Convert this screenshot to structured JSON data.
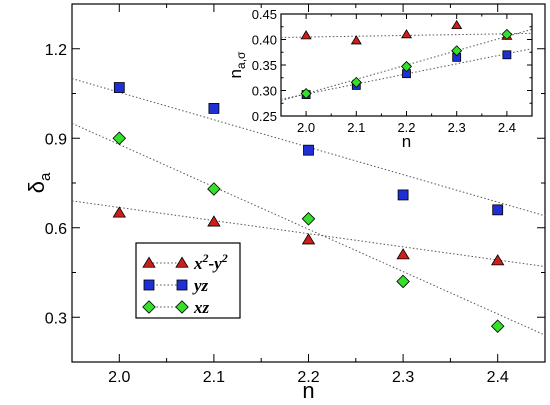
{
  "chart_data": [
    {
      "type": "line",
      "xlabel": "n",
      "ylabel": "δ",
      "ylabel_sub": "a",
      "xlim": [
        1.95,
        2.45
      ],
      "ylim": [
        0.15,
        1.35
      ],
      "xticks": [
        "2.0",
        "2.1",
        "2.2",
        "2.3",
        "2.4"
      ],
      "yticks": [
        "0.3",
        "0.6",
        "0.9",
        "1.2"
      ],
      "x": [
        2.0,
        2.1,
        2.2,
        2.3,
        2.4
      ],
      "series": [
        {
          "name": "x2-y2",
          "marker": "triangle",
          "color": "#cc1f1a",
          "values": [
            0.65,
            0.62,
            0.56,
            0.51,
            0.49
          ],
          "fit": [
            [
              1.95,
              0.69
            ],
            [
              2.45,
              0.47
            ]
          ]
        },
        {
          "name": "yz",
          "marker": "square",
          "color": "#1f2fd6",
          "values": [
            1.07,
            1.0,
            0.86,
            0.71,
            0.66
          ],
          "fit": [
            [
              1.95,
              1.1
            ],
            [
              2.45,
              0.64
            ]
          ]
        },
        {
          "name": "xz",
          "marker": "diamond",
          "color": "#35e02a",
          "values": [
            0.9,
            0.73,
            0.63,
            0.42,
            0.27
          ],
          "fit": [
            [
              1.95,
              0.95
            ],
            [
              2.45,
              0.24
            ]
          ]
        }
      ],
      "legend": {
        "placement": "lower-left",
        "entries": [
          {
            "base": "x",
            "sup1": "2",
            "mid": "-y",
            "sup2": "2"
          },
          {
            "base": "yz"
          },
          {
            "base": "xz"
          }
        ]
      }
    },
    {
      "type": "line",
      "role": "inset",
      "xlabel": "n",
      "ylabel": "n",
      "ylabel_sub": "a,σ",
      "xlim": [
        1.95,
        2.45
      ],
      "ylim": [
        0.25,
        0.45
      ],
      "xticks": [
        "2.0",
        "2.1",
        "2.2",
        "2.3",
        "2.4"
      ],
      "yticks": [
        "0.25",
        "0.30",
        "0.35",
        "0.40",
        "0.45"
      ],
      "x": [
        2.0,
        2.1,
        2.2,
        2.3,
        2.4
      ],
      "series": [
        {
          "name": "x2-y2",
          "marker": "triangle",
          "color": "#cc1f1a",
          "values": [
            0.408,
            0.398,
            0.41,
            0.428,
            0.407
          ],
          "fit": [
            [
              1.95,
              0.404
            ],
            [
              2.45,
              0.412
            ]
          ]
        },
        {
          "name": "yz",
          "marker": "square",
          "color": "#1f2fd6",
          "values": [
            0.292,
            0.31,
            0.333,
            0.365,
            0.37
          ],
          "fit": [
            [
              1.95,
              0.283
            ],
            [
              2.45,
              0.382
            ]
          ]
        },
        {
          "name": "xz",
          "marker": "diamond",
          "color": "#35e02a",
          "values": [
            0.294,
            0.316,
            0.347,
            0.378,
            0.41
          ],
          "fit": [
            [
              1.95,
              0.28
            ],
            [
              2.45,
              0.42
            ]
          ]
        }
      ]
    }
  ]
}
